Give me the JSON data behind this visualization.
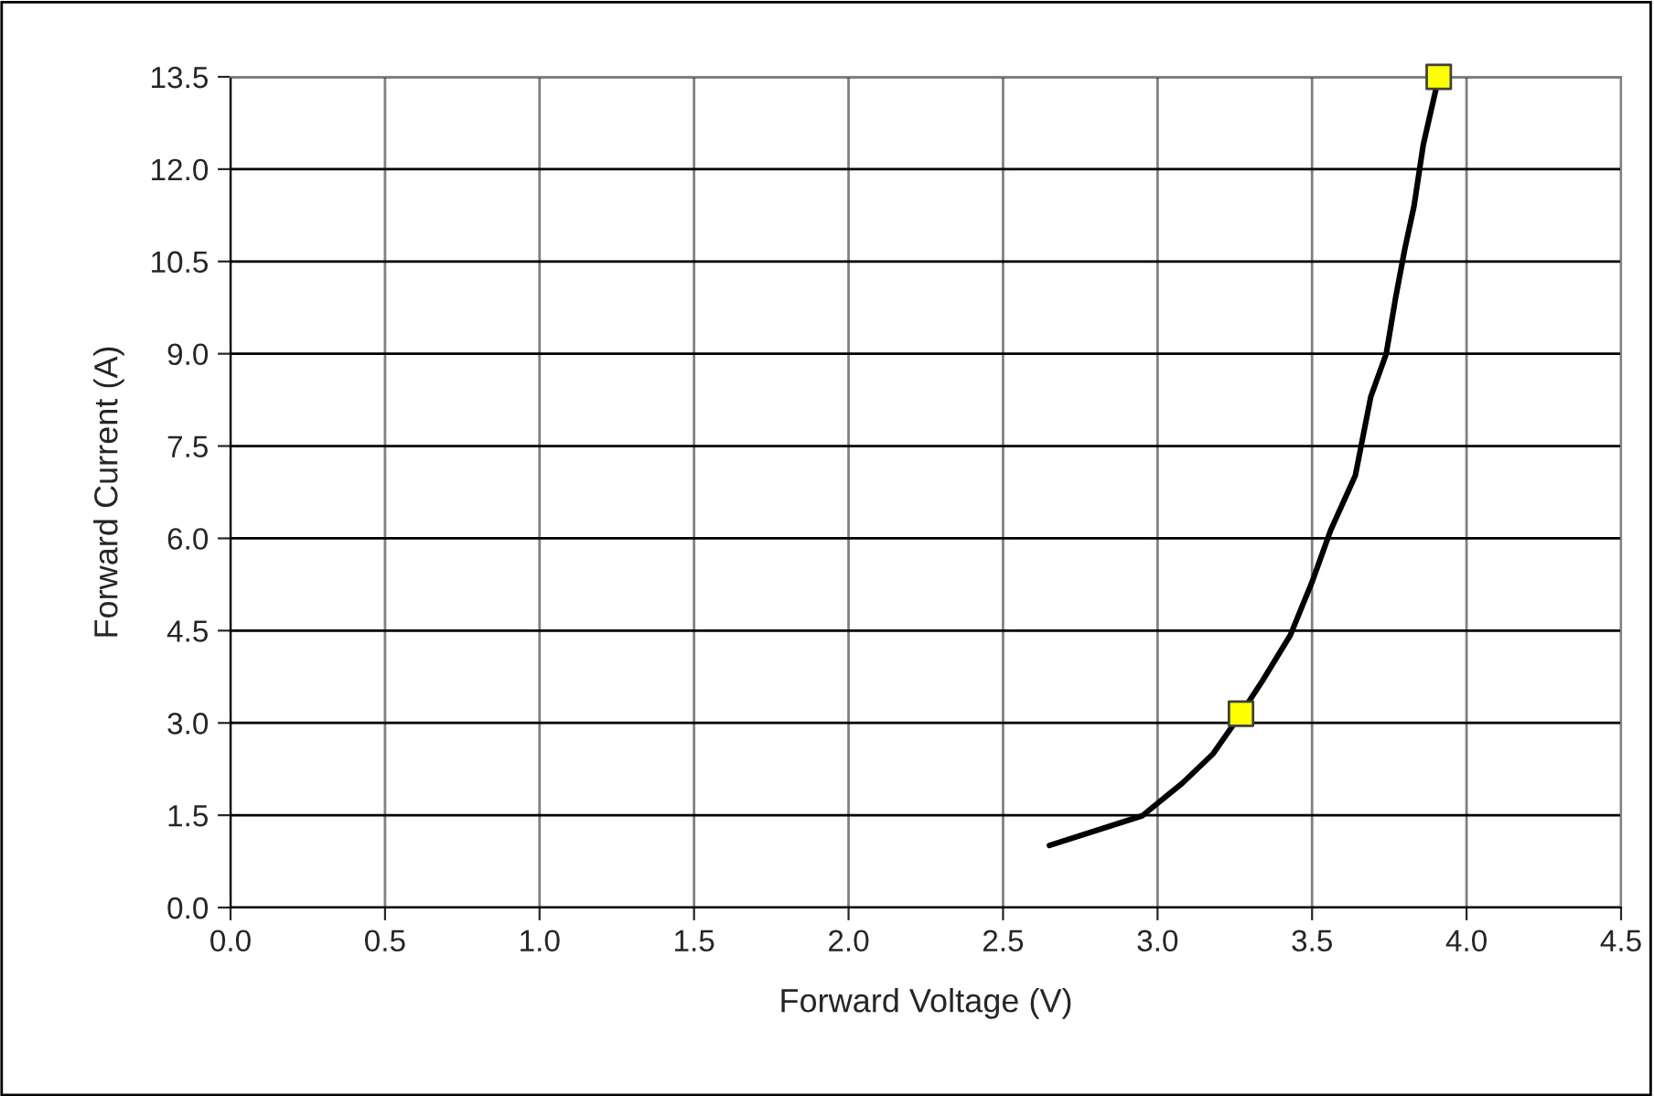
{
  "chart_data": {
    "type": "line",
    "xlabel": "Forward Voltage (V)",
    "ylabel": "Forward Current (A)",
    "series": [
      {
        "color": "#000000",
        "marker": "none",
        "x": [
          2.65,
          2.95,
          3.08,
          3.18,
          3.27,
          3.34,
          3.43,
          3.5,
          3.56,
          3.64,
          3.69,
          3.74,
          3.77,
          3.8,
          3.83,
          3.86,
          3.91
        ],
        "values": [
          1.01,
          1.49,
          2.02,
          2.5,
          3.15,
          3.69,
          4.43,
          5.29,
          6.13,
          7.02,
          8.3,
          9.0,
          9.9,
          10.7,
          11.4,
          12.4,
          13.5
        ]
      },
      {
        "type": "scatter",
        "color": "#ffff00",
        "marker": "square",
        "x": [
          3.27,
          3.91
        ],
        "values": [
          3.15,
          13.5
        ]
      }
    ],
    "xlim": [
      0,
      4.5
    ],
    "xticks": [
      {
        "value": 0,
        "label": "0.0"
      },
      {
        "value": 0.5,
        "label": "0.5"
      },
      {
        "value": 1,
        "label": "1.0"
      },
      {
        "value": 1.5,
        "label": "1.5"
      },
      {
        "value": 2,
        "label": "2.0"
      },
      {
        "value": 2.5,
        "label": "2.5"
      },
      {
        "value": 3,
        "label": "3.0"
      },
      {
        "value": 3.5,
        "label": "3.5"
      },
      {
        "value": 4,
        "label": "4.0"
      },
      {
        "value": 4.5,
        "label": "4.5"
      }
    ],
    "ylim": [
      0,
      13.5
    ],
    "yticks": [
      {
        "value": 0,
        "label": "0.0"
      },
      {
        "value": 1.5,
        "label": "1.5"
      },
      {
        "value": 3,
        "label": "3.0"
      },
      {
        "value": 4.5,
        "label": "4.5"
      },
      {
        "value": 6,
        "label": "6.0"
      },
      {
        "value": 7.5,
        "label": "7.5"
      },
      {
        "value": 9,
        "label": "9.0"
      },
      {
        "value": 10.5,
        "label": "10.5"
      },
      {
        "value": 12,
        "label": "12.0"
      },
      {
        "value": 13.5,
        "label": "13.5"
      }
    ],
    "grid": true,
    "legend": false
  }
}
